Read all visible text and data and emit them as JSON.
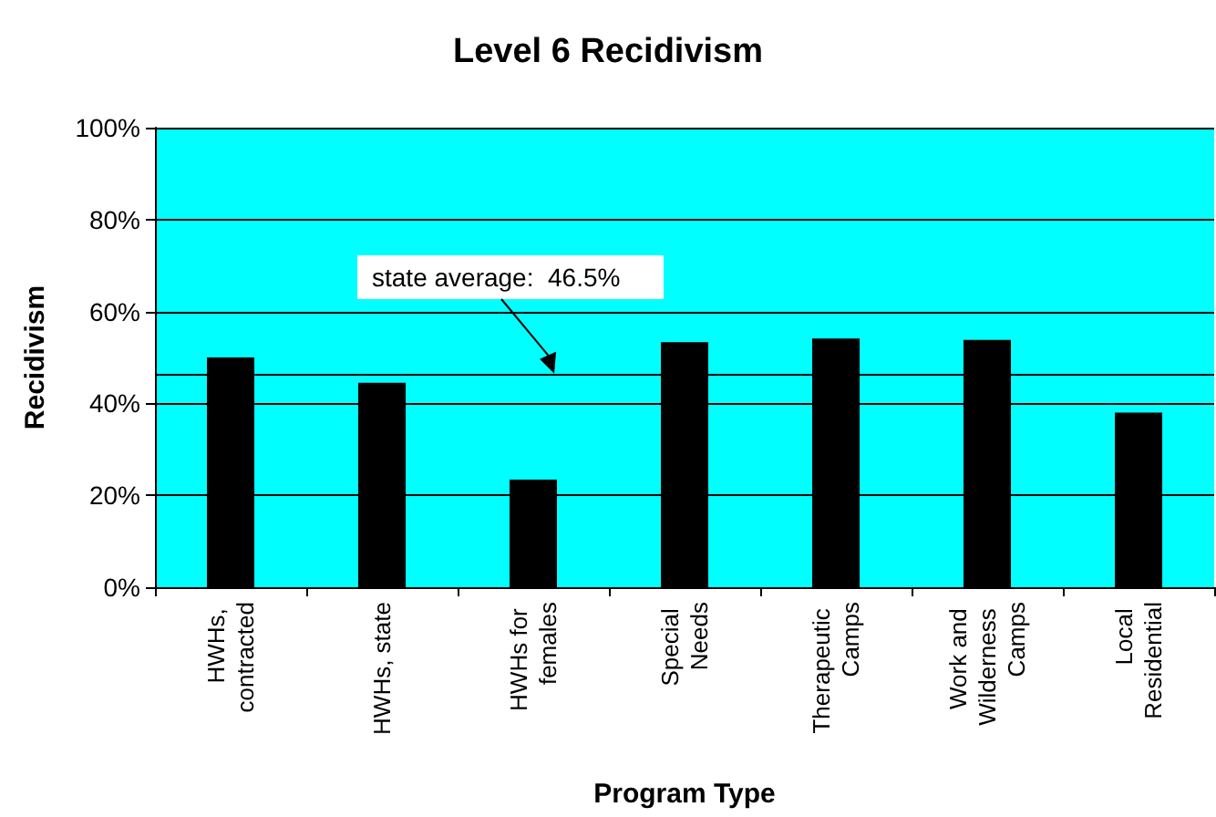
{
  "chart_data": {
    "type": "bar",
    "title": "Level 6 Recidivism",
    "xlabel": "Program Type",
    "ylabel": "Recidivism",
    "categories": [
      "HWHs, contracted",
      "HWHs, state",
      "HWHs for females",
      "Special Needs",
      "Therapeutic Camps",
      "Work and Wilderness Camps",
      "Local Residential"
    ],
    "values": [
      50.0,
      44.5,
      23.4,
      53.3,
      54.1,
      53.8,
      38.0
    ],
    "color": "#000000",
    "ylim": [
      0,
      100
    ],
    "yticks": [
      {
        "value": 0,
        "label": "0%"
      },
      {
        "value": 20,
        "label": "20%"
      },
      {
        "value": 40,
        "label": "40%"
      },
      {
        "value": 60,
        "label": "60%"
      },
      {
        "value": 80,
        "label": "80%"
      },
      {
        "value": 100,
        "label": "100%"
      }
    ],
    "grid": "y",
    "ref_lines": [
      {
        "axis": "y",
        "value": 46.5,
        "label": "state average:  46.5%",
        "color": "#000000"
      }
    ]
  }
}
